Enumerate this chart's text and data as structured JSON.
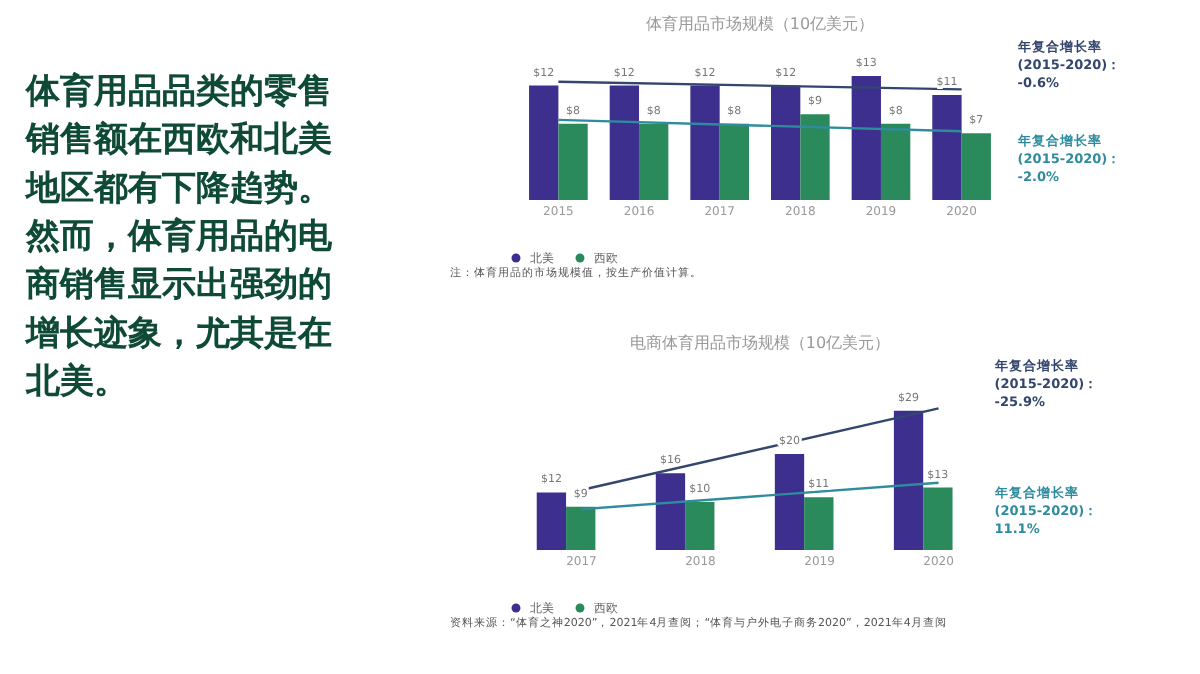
{
  "chart_data": [
    {
      "type": "other",
      "annotations": [
        "体育用品品类的零售销售额在西欧和北美地区都有下降趋势。然而，体育用品的电商销售显示出强劲的增长迹象，尤其是在北美。"
      ]
    },
    {
      "type": "bar",
      "title": "体育用品市场规模（10亿美元）",
      "categories": [
        "2015",
        "2016",
        "2017",
        "2018",
        "2019",
        "2020"
      ],
      "legend": "bottom",
      "series": [
        {
          "name": "北美",
          "color": "#3d2f8e",
          "values": [
            12,
            12,
            12,
            12,
            13,
            11
          ],
          "value_labels": [
            "$12",
            "$12",
            "$12",
            "$12",
            "$13",
            "$11"
          ]
        },
        {
          "name": "西欧",
          "color": "#2b8a5c",
          "values": [
            8,
            8,
            8,
            9,
            8,
            7
          ],
          "value_labels": [
            "$8",
            "$8",
            "$8",
            "$9",
            "$8",
            "$7"
          ]
        },
        {
          "type": "line",
          "color": "#34466e",
          "values": [
            12.4,
            null,
            null,
            null,
            null,
            11.6
          ]
        },
        {
          "type": "line",
          "color": "#2f8c9c",
          "values": [
            8.4,
            null,
            null,
            null,
            null,
            7.2
          ]
        }
      ],
      "annotations": [
        "年复合增长率\n(2015-2020)：\n-0.6%",
        "年复合增长率\n(2015-2020)：\n-2.0%",
        "注：体育用品的市场规模值，按生产价值计算。"
      ]
    },
    {
      "type": "bar",
      "title": "电商体育用品市场规模（10亿美元）",
      "categories": [
        "2017",
        "2018",
        "2019",
        "2020"
      ],
      "legend": "bottom",
      "series": [
        {
          "name": "北美",
          "color": "#3d2f8e",
          "values": [
            12,
            16,
            20,
            29
          ],
          "value_labels": [
            "$12",
            "$16",
            "$20",
            "$29"
          ]
        },
        {
          "name": "西欧",
          "color": "#2b8a5c",
          "values": [
            9,
            10,
            11,
            13
          ],
          "value_labels": [
            "$9",
            "$10",
            "$11",
            "$13"
          ]
        },
        {
          "type": "line",
          "color": "#34466e",
          "values": [
            12.5,
            null,
            null,
            29.5
          ]
        },
        {
          "type": "line",
          "color": "#2f8c9c",
          "values": [
            8.5,
            null,
            null,
            14
          ]
        }
      ],
      "annotations": [
        "年复合增长率\n(2015-2020)：\n-25.9%",
        "年复合增长率\n(2015-2020)：\n11.1%",
        "资料来源：“体育之神2020”，2021年4月查阅；“体育与户外电子商务2020”，2021年4月查阅"
      ]
    }
  ]
}
